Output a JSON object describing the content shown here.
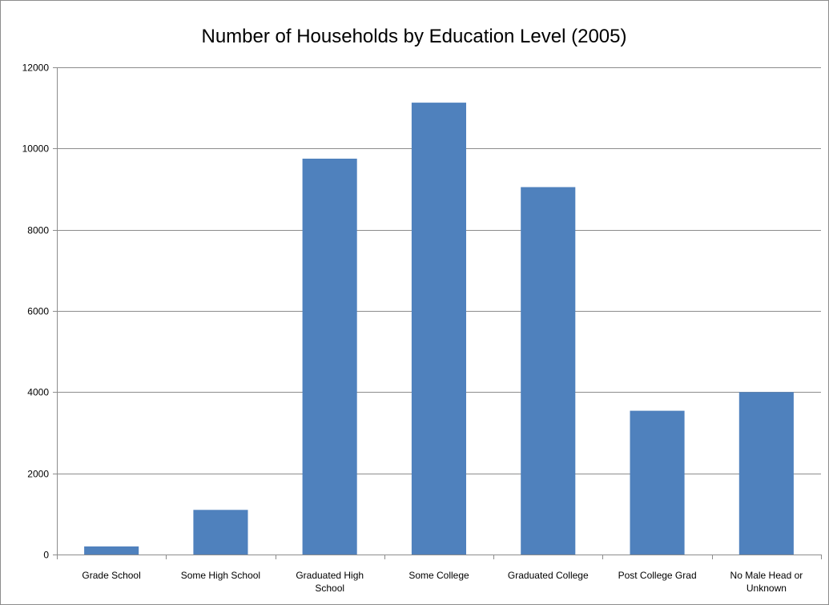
{
  "chart_data": {
    "type": "bar",
    "title": "Number of Households by Education Level (2005)",
    "xlabel": "",
    "ylabel": "",
    "categories": [
      "Grade School",
      "Some High School",
      "Graduated High School",
      "Some College",
      "Graduated College",
      "Post College Grad",
      "No Male Head or Unknown"
    ],
    "values": [
      200,
      1100,
      9750,
      11130,
      9050,
      3540,
      4000
    ],
    "ylim": [
      0,
      12000
    ],
    "yticks": [
      0,
      2000,
      4000,
      6000,
      8000,
      10000,
      12000
    ],
    "grid": true,
    "legend": "none",
    "bar_color": "#4f81bd"
  }
}
